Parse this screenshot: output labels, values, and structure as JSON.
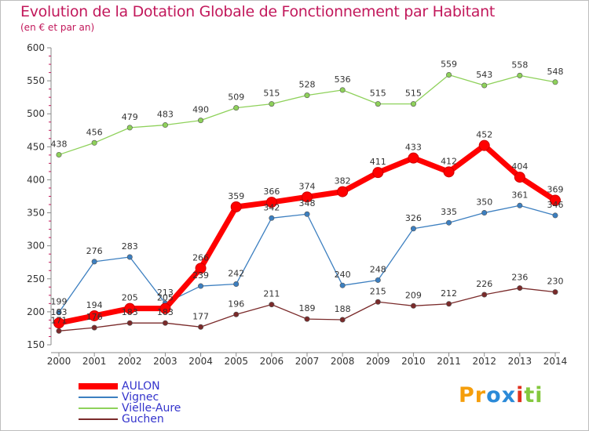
{
  "title": "Evolution de la Dotation Globale de Fonctionnement par Habitant",
  "subtitle": "(en € et par an)",
  "logo_text": "Proxiti",
  "colors": {
    "title": "#c2185b",
    "axis_text": "#333333",
    "grid": "#cccccc",
    "logo_letters": [
      "#f59e0b",
      "#f59e0b",
      "#2b8ad8",
      "#2b8ad8",
      "#e0301e",
      "#84c83e",
      "#84c83e"
    ]
  },
  "chart_data": {
    "type": "line",
    "x": [
      "2000",
      "2001",
      "2002",
      "2003",
      "2004",
      "2005",
      "2006",
      "2007",
      "2008",
      "2009",
      "2010",
      "2011",
      "2012",
      "2013",
      "2014"
    ],
    "ylim": [
      150,
      600
    ],
    "yticks": [
      "150",
      "200",
      "250",
      "300",
      "350",
      "400",
      "450",
      "500",
      "550",
      "600"
    ],
    "grid": false,
    "legend_position": "bottom-left",
    "series": [
      {
        "name": "AULON",
        "color": "#ff0000",
        "legend_color": "#3333cc",
        "values": [
          183,
          194,
          205,
          205,
          266,
          359,
          366,
          374,
          382,
          411,
          433,
          412,
          452,
          404,
          369
        ],
        "labels": [
          "183",
          "194",
          "205",
          "205",
          "266",
          "359",
          "366",
          "374",
          "382",
          "411",
          "433",
          "412",
          "452",
          "404",
          "369"
        ]
      },
      {
        "name": "Vignec",
        "color": "#3c7fc0",
        "legend_color": "#3333cc",
        "values": [
          199,
          276,
          283,
          213,
          239,
          242,
          342,
          348,
          240,
          248,
          326,
          335,
          350,
          361,
          346
        ],
        "labels": [
          "199",
          "276",
          "283",
          "213",
          "239",
          "242",
          "342",
          "348",
          "240",
          "248",
          "326",
          "335",
          "350",
          "361",
          "346"
        ]
      },
      {
        "name": "Vielle-Aure",
        "color": "#8ed15a",
        "legend_color": "#3333cc",
        "values": [
          438,
          456,
          479,
          483,
          490,
          509,
          515,
          528,
          536,
          515,
          515,
          559,
          543,
          558,
          548
        ],
        "labels": [
          "438",
          "456",
          "479",
          "483",
          "490",
          "509",
          "515",
          "528",
          "536",
          "515",
          "515",
          "559",
          "543",
          "558",
          "548"
        ]
      },
      {
        "name": "Guchen",
        "color": "#7a2a2a",
        "legend_color": "#3333cc",
        "values": [
          171,
          176,
          183,
          183,
          177,
          196,
          211,
          189,
          188,
          215,
          209,
          212,
          226,
          236,
          230
        ],
        "labels": [
          "171",
          "176",
          "183",
          "183",
          "177",
          "196",
          "211",
          "189",
          "188",
          "215",
          "209",
          "212",
          "226",
          "236",
          "230"
        ]
      }
    ]
  }
}
